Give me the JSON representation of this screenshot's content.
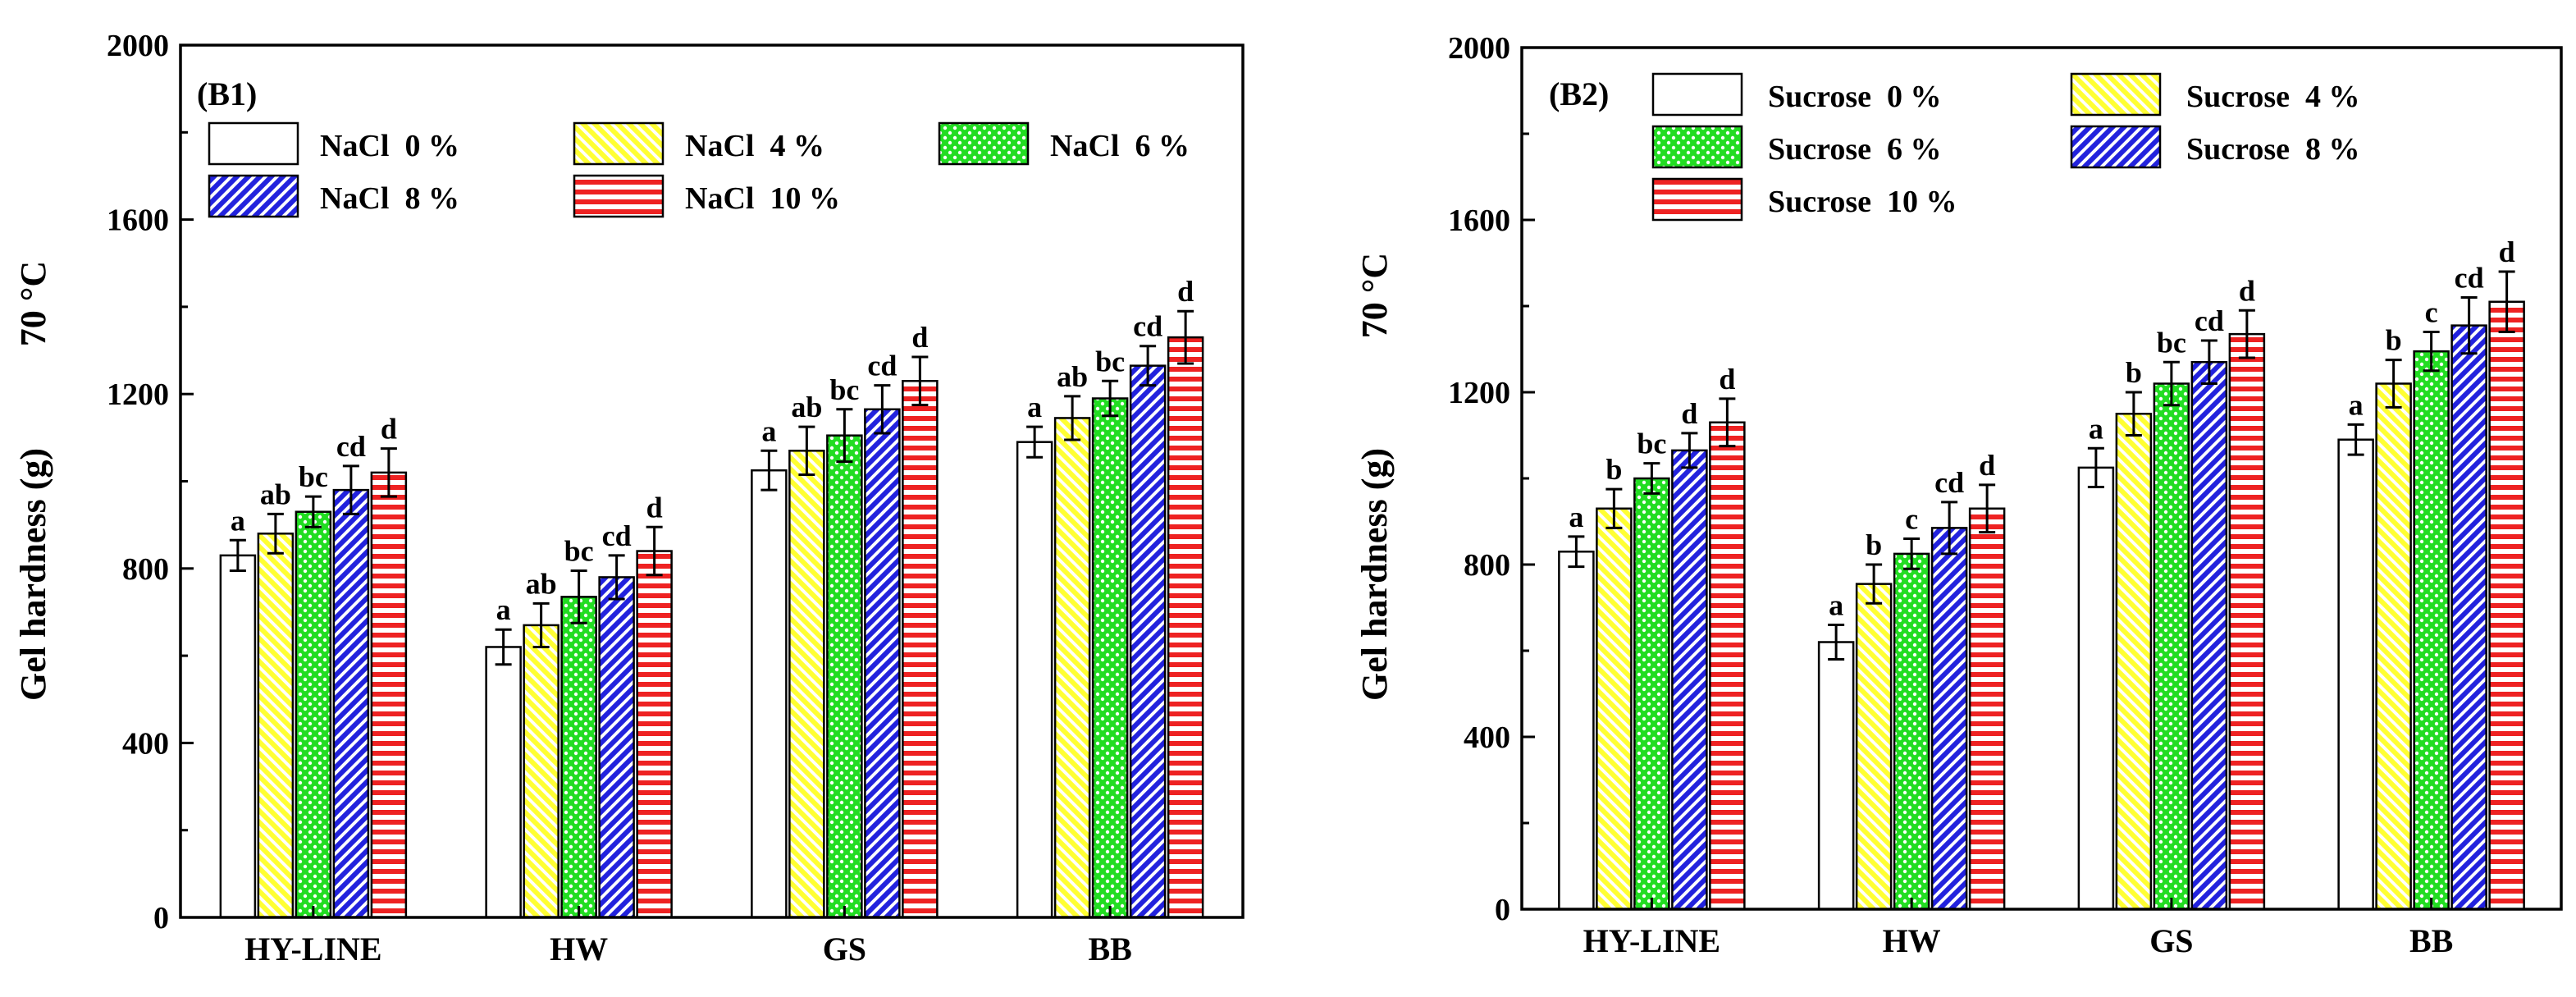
{
  "colors": {
    "s0": "#ffffff",
    "s4": "#ffff33",
    "s6": "#22dd22",
    "s8": "#2222dd",
    "s10": "#ee2222"
  },
  "chart_data": [
    {
      "type": "bar",
      "panel_label": "(B1)",
      "ylabel": "Gel hardness (g)",
      "temperature_label": "70 °C",
      "xlabel": "",
      "ylim": [
        0,
        2000
      ],
      "yticks": [
        0,
        400,
        800,
        1200,
        1600,
        2000
      ],
      "categories": [
        "HY-LINE",
        "HW",
        "GS",
        "BB"
      ],
      "legend_position": "top-left",
      "series": [
        {
          "name": "NaCl  0 %",
          "pattern": "none",
          "colorKey": "s0",
          "values": [
            830,
            620,
            1025,
            1090
          ],
          "errors": [
            35,
            40,
            45,
            35
          ],
          "letters": [
            "a",
            "a",
            "a",
            "a"
          ]
        },
        {
          "name": "NaCl  4 %",
          "pattern": "diag-down",
          "colorKey": "s4",
          "values": [
            880,
            670,
            1070,
            1145
          ],
          "errors": [
            45,
            50,
            55,
            50
          ],
          "letters": [
            "ab",
            "ab",
            "ab",
            "ab"
          ]
        },
        {
          "name": "NaCl  6 %",
          "pattern": "dots",
          "colorKey": "s6",
          "values": [
            930,
            735,
            1105,
            1190
          ],
          "errors": [
            35,
            60,
            60,
            40
          ],
          "letters": [
            "bc",
            "bc",
            "bc",
            "bc"
          ]
        },
        {
          "name": "NaCl  8 %",
          "pattern": "diag-up",
          "colorKey": "s8",
          "values": [
            980,
            780,
            1165,
            1265
          ],
          "errors": [
            55,
            50,
            55,
            45
          ],
          "letters": [
            "cd",
            "cd",
            "cd",
            "cd"
          ]
        },
        {
          "name": "NaCl  10 %",
          "pattern": "horiz",
          "colorKey": "s10",
          "values": [
            1020,
            840,
            1230,
            1330
          ],
          "errors": [
            55,
            55,
            55,
            60
          ],
          "letters": [
            "d",
            "d",
            "d",
            "d"
          ]
        }
      ]
    },
    {
      "type": "bar",
      "panel_label": "(B2)",
      "ylabel": "Gel hardness (g)",
      "temperature_label": "70 °C",
      "xlabel": "",
      "ylim": [
        0,
        2000
      ],
      "yticks": [
        0,
        400,
        800,
        1200,
        1600,
        2000
      ],
      "categories": [
        "HY-LINE",
        "HW",
        "GS",
        "BB"
      ],
      "legend_position": "top-left",
      "series": [
        {
          "name": "Sucrose  0 %",
          "pattern": "none",
          "colorKey": "s0",
          "values": [
            830,
            620,
            1025,
            1090
          ],
          "errors": [
            35,
            40,
            45,
            35
          ],
          "letters": [
            "a",
            "a",
            "a",
            "a"
          ]
        },
        {
          "name": "Sucrose  4 %",
          "pattern": "diag-down",
          "colorKey": "s4",
          "values": [
            930,
            755,
            1150,
            1220
          ],
          "errors": [
            45,
            45,
            50,
            55
          ],
          "letters": [
            "b",
            "b",
            "b",
            "b"
          ]
        },
        {
          "name": "Sucrose  6 %",
          "pattern": "dots",
          "colorKey": "s6",
          "values": [
            1000,
            825,
            1220,
            1295
          ],
          "errors": [
            35,
            35,
            50,
            45
          ],
          "letters": [
            "bc",
            "c",
            "bc",
            "c"
          ]
        },
        {
          "name": "Sucrose  8 %",
          "pattern": "diag-up",
          "colorKey": "s8",
          "values": [
            1065,
            885,
            1270,
            1355
          ],
          "errors": [
            40,
            60,
            50,
            65
          ],
          "letters": [
            "d",
            "cd",
            "cd",
            "cd"
          ]
        },
        {
          "name": "Sucrose  10 %",
          "pattern": "horiz",
          "colorKey": "s10",
          "values": [
            1130,
            930,
            1335,
            1410
          ],
          "errors": [
            55,
            55,
            55,
            70
          ],
          "letters": [
            "d",
            "d",
            "d",
            "d"
          ]
        }
      ]
    }
  ]
}
